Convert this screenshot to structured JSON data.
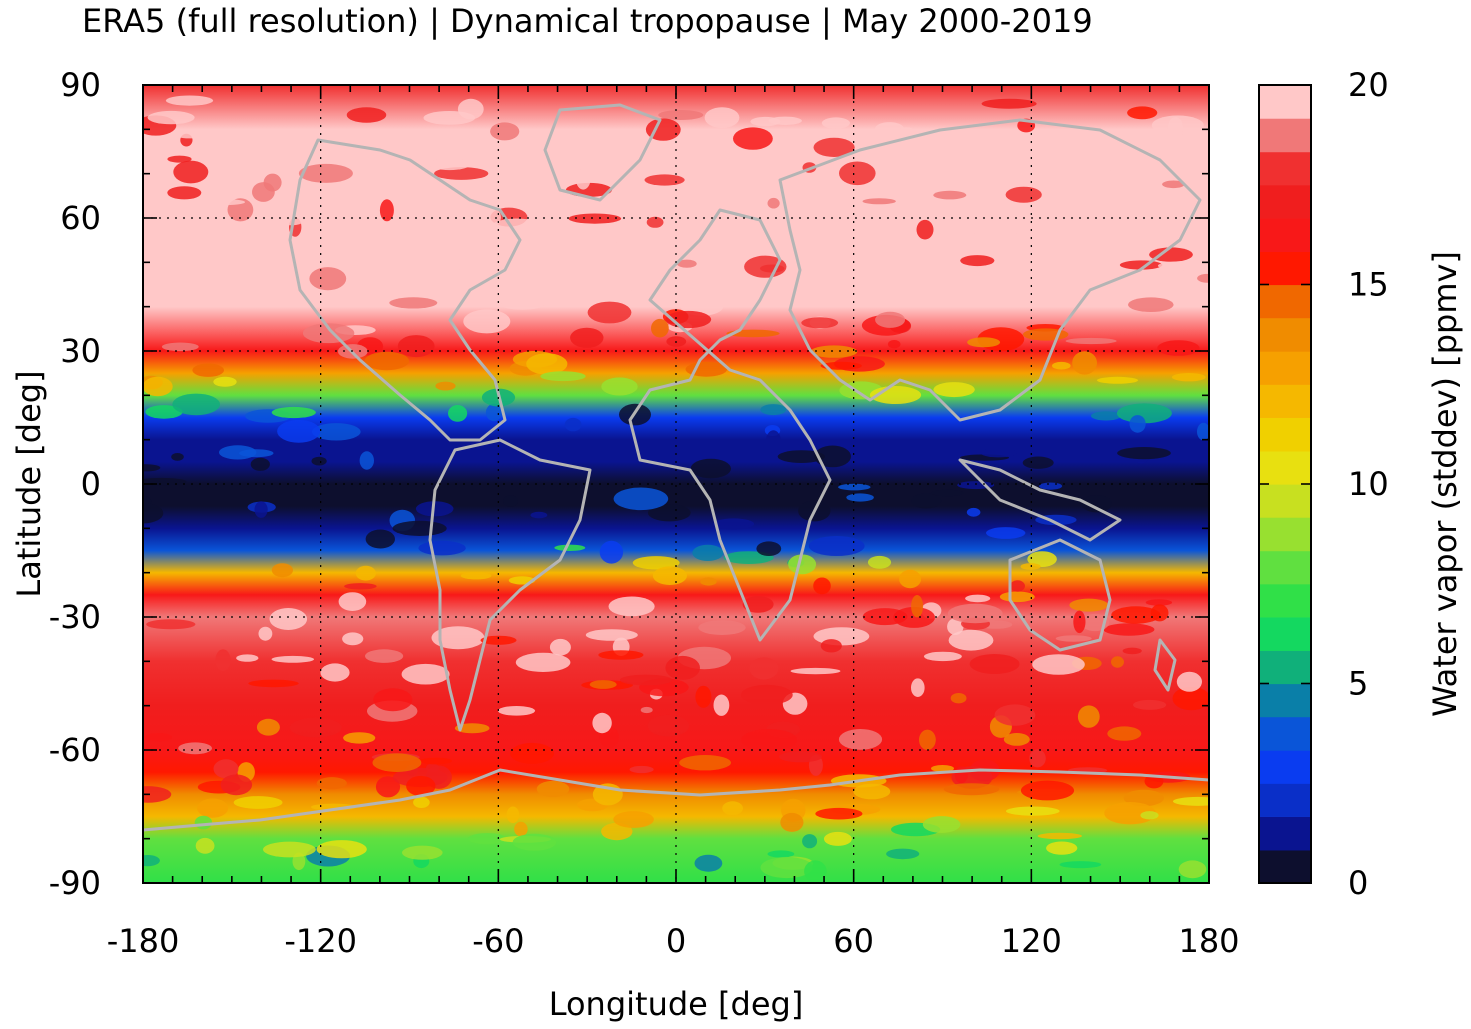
{
  "chart_data": {
    "type": "heatmap",
    "title": "ERA5 (full resolution) | Dynamical tropopause | May 2000-2019",
    "xlabel": "Longitude [deg]",
    "ylabel": "Latitude [deg]",
    "xlim": [
      -180,
      180
    ],
    "ylim": [
      -90,
      90
    ],
    "xticks": [
      -180,
      -120,
      -60,
      0,
      60,
      120,
      180
    ],
    "yticks": [
      90,
      60,
      30,
      0,
      -30,
      -60,
      -90
    ],
    "grid": true,
    "overlay": "coastlines",
    "colorbar": {
      "label": "Water vapor (stddev) [ppmv]",
      "range": [
        0,
        20
      ],
      "ticks": [
        20,
        15,
        10,
        5,
        0
      ],
      "placement": "right",
      "colors": [
        "#0d0f2e",
        "#0a1490",
        "#0a2fc8",
        "#0a3cf0",
        "#0a55d8",
        "#0a7fa8",
        "#10b07a",
        "#14d860",
        "#30e048",
        "#60e040",
        "#98e030",
        "#c8e020",
        "#e8e010",
        "#f0d000",
        "#f5b800",
        "#f6a000",
        "#f08c00",
        "#f06800",
        "#ff1800",
        "#f81818",
        "#f01e1e",
        "#f03030",
        "#f07878",
        "#ffc8c8"
      ],
      "values": [
        0.0,
        0.83,
        1.67,
        2.5,
        3.33,
        4.17,
        5.0,
        5.83,
        6.67,
        7.5,
        8.33,
        9.17,
        10.0,
        10.83,
        11.67,
        12.5,
        13.33,
        14.17,
        15.0,
        15.83,
        16.67,
        17.5,
        18.33,
        19.17
      ]
    },
    "zonal_profile": {
      "lat": [
        90,
        80,
        70,
        60,
        50,
        40,
        30,
        25,
        20,
        15,
        10,
        5,
        0,
        -5,
        -10,
        -15,
        -20,
        -25,
        -30,
        -40,
        -50,
        -60,
        -65,
        -70,
        -75,
        -80,
        -90
      ],
      "values": [
        17.5,
        19.5,
        20,
        20,
        20,
        20,
        16,
        13,
        8,
        3,
        1.5,
        1,
        0.5,
        0.8,
        1.5,
        4,
        12,
        16,
        19,
        18,
        17,
        16,
        15.5,
        14,
        12,
        8,
        7
      ]
    }
  }
}
